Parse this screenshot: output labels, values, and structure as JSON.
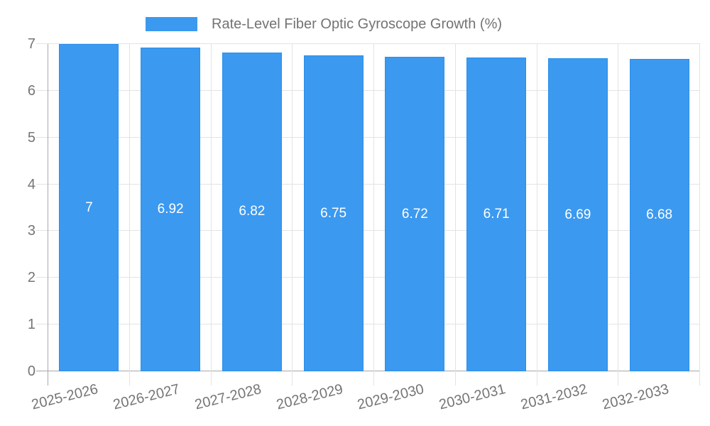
{
  "chart_data": {
    "type": "bar",
    "title": "Rate-Level Fiber Optic Gyroscope Growth (%)",
    "categories": [
      "2025-2026",
      "2026-2027",
      "2027-2028",
      "2028-2029",
      "2029-2030",
      "2030-2031",
      "2031-2032",
      "2032-2033"
    ],
    "values": [
      7,
      6.92,
      6.82,
      6.75,
      6.72,
      6.71,
      6.69,
      6.68
    ],
    "value_labels": [
      "7",
      "6.92",
      "6.82",
      "6.75",
      "6.72",
      "6.71",
      "6.69",
      "6.68"
    ],
    "xlabel": "",
    "ylabel": "",
    "ylim": [
      0,
      7
    ],
    "yticks": [
      "0",
      "1",
      "2",
      "3",
      "4",
      "5",
      "6",
      "7"
    ],
    "grid": true,
    "legend_position": "top-center",
    "colors": {
      "bar_fill": "#3B99F0",
      "bar_border": "#2A90EA",
      "value_label": "#ffffff",
      "gridline": "#e3e3e3",
      "axis_line": "#a8a8a8",
      "tick_label": "#757575",
      "legend_text": "#737373",
      "background": "#ffffff"
    }
  }
}
